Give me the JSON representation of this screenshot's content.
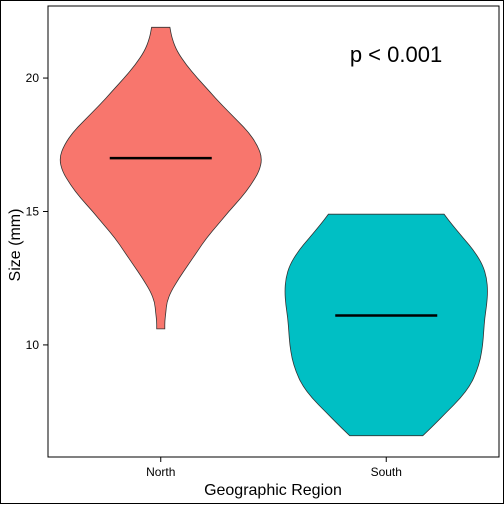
{
  "chart_data": {
    "type": "violin",
    "xlabel": "Geographic Region",
    "ylabel": "Size (mm)",
    "annotation": "p < 0.001",
    "ylim": [
      5.8,
      22.7
    ],
    "yticks": [
      10,
      15,
      20
    ],
    "ytick_labels": [
      "10",
      "15",
      "20"
    ],
    "categories": [
      "North",
      "South"
    ],
    "grid": false,
    "series": [
      {
        "name": "North",
        "color": "#F8766D",
        "median": 17.0,
        "min": 10.6,
        "max": 21.9,
        "profile": [
          [
            10.6,
            0.04
          ],
          [
            10.9,
            0.04
          ],
          [
            11.2,
            0.05
          ],
          [
            11.6,
            0.06
          ],
          [
            12.0,
            0.1
          ],
          [
            12.5,
            0.18
          ],
          [
            13.0,
            0.27
          ],
          [
            13.5,
            0.36
          ],
          [
            14.0,
            0.45
          ],
          [
            14.5,
            0.56
          ],
          [
            15.0,
            0.67
          ],
          [
            15.5,
            0.79
          ],
          [
            16.0,
            0.89
          ],
          [
            16.5,
            0.97
          ],
          [
            17.0,
            1.0
          ],
          [
            17.5,
            0.95
          ],
          [
            18.0,
            0.86
          ],
          [
            18.5,
            0.73
          ],
          [
            19.0,
            0.6
          ],
          [
            19.5,
            0.48
          ],
          [
            20.0,
            0.36
          ],
          [
            20.5,
            0.25
          ],
          [
            21.0,
            0.16
          ],
          [
            21.5,
            0.11
          ],
          [
            21.9,
            0.09
          ]
        ]
      },
      {
        "name": "South",
        "color": "#00BFC4",
        "median": 11.1,
        "min": 6.6,
        "max": 14.9,
        "profile": [
          [
            6.6,
            0.36
          ],
          [
            7.0,
            0.47
          ],
          [
            7.5,
            0.6
          ],
          [
            8.0,
            0.73
          ],
          [
            8.5,
            0.83
          ],
          [
            9.0,
            0.89
          ],
          [
            9.5,
            0.93
          ],
          [
            10.0,
            0.95
          ],
          [
            10.5,
            0.96
          ],
          [
            11.0,
            0.97
          ],
          [
            11.5,
            0.99
          ],
          [
            12.0,
            1.0
          ],
          [
            12.5,
            0.99
          ],
          [
            13.0,
            0.95
          ],
          [
            13.5,
            0.87
          ],
          [
            14.0,
            0.76
          ],
          [
            14.5,
            0.65
          ],
          [
            14.9,
            0.57
          ]
        ]
      }
    ]
  }
}
